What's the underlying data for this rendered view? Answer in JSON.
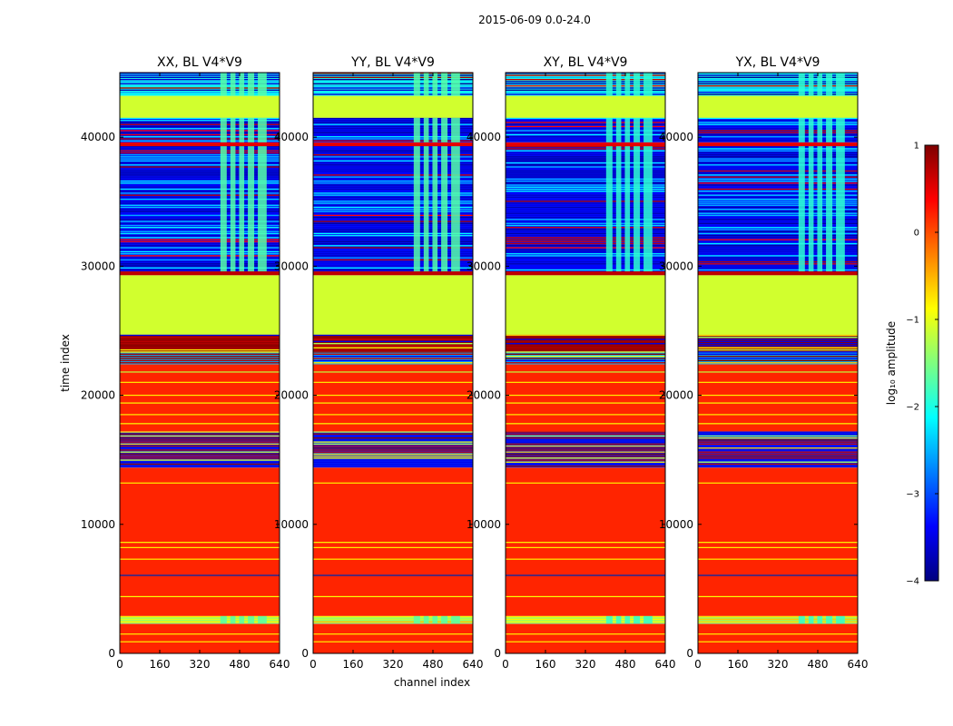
{
  "figure": {
    "suptitle": "2015-06-09 0.0-24.0",
    "xlabel": "channel index",
    "ylabel": "time index"
  },
  "colorbar": {
    "label": "log₁₀ amplitude",
    "range": [
      -4,
      1
    ],
    "ticks": [
      1,
      0,
      -1,
      -2,
      -3,
      -4
    ],
    "tick_labels": [
      "1",
      "0",
      "−1",
      "−2",
      "−3",
      "−4"
    ],
    "colors": [
      "#00007f",
      "#0000ff",
      "#007fff",
      "#00ffff",
      "#7fff7f",
      "#ffff00",
      "#ff7f00",
      "#ff0000",
      "#7f0000"
    ]
  },
  "chart_data": [
    {
      "type": "heatmap",
      "title": "XX, BL V4*V9",
      "xlim": [
        0,
        640
      ],
      "ylim": [
        0,
        45000
      ],
      "xticks": [
        0,
        160,
        320,
        480,
        640
      ],
      "yticks": [
        0,
        10000,
        20000,
        30000,
        40000
      ],
      "xtick_labels": [
        "0",
        "160",
        "320",
        "480",
        "640"
      ],
      "ytick_labels": [
        "0",
        "10000",
        "20000",
        "30000",
        "40000"
      ]
    },
    {
      "type": "heatmap",
      "title": "YY, BL V4*V9",
      "xlim": [
        0,
        640
      ],
      "ylim": [
        0,
        45000
      ],
      "xticks": [
        0,
        160,
        320,
        480,
        640
      ],
      "yticks": [
        0,
        10000,
        20000,
        30000,
        40000
      ],
      "xtick_labels": [
        "0",
        "160",
        "320",
        "480",
        "640"
      ],
      "ytick_labels": [
        "0",
        "10000",
        "20000",
        "30000",
        "40000"
      ]
    },
    {
      "type": "heatmap",
      "title": "XY, BL V4*V9",
      "xlim": [
        0,
        640
      ],
      "ylim": [
        0,
        45000
      ],
      "xticks": [
        0,
        160,
        320,
        480,
        640
      ],
      "yticks": [
        0,
        10000,
        20000,
        30000,
        40000
      ],
      "xtick_labels": [
        "0",
        "160",
        "320",
        "480",
        "640"
      ],
      "ytick_labels": [
        "0",
        "10000",
        "20000",
        "30000",
        "40000"
      ]
    },
    {
      "type": "heatmap",
      "title": "YX, BL V4*V9",
      "xlim": [
        0,
        640
      ],
      "ylim": [
        0,
        45000
      ],
      "xticks": [
        0,
        160,
        320,
        480,
        640
      ],
      "yticks": [
        0,
        10000,
        20000,
        30000,
        40000
      ],
      "xtick_labels": [
        "0",
        "160",
        "320",
        "480",
        "640"
      ],
      "ytick_labels": [
        "0",
        "10000",
        "20000",
        "30000",
        "40000"
      ]
    }
  ],
  "heatmap_bands": [
    {
      "t0": 0,
      "t1": 2300,
      "value": 0.2
    },
    {
      "t0": 2300,
      "t1": 2900,
      "value": -1.5,
      "kind": "rfi"
    },
    {
      "t0": 2900,
      "t1": 6000,
      "value": 0.2
    },
    {
      "t0": 6000,
      "t1": 6100,
      "value": -4
    },
    {
      "t0": 6100,
      "t1": 14400,
      "value": 0.2
    },
    {
      "t0": 14400,
      "t1": 17200,
      "value": -3.2,
      "kind": "mixed"
    },
    {
      "t0": 17200,
      "t1": 22400,
      "value": 0.2
    },
    {
      "t0": 22400,
      "t1": 23400,
      "value": -2.5,
      "kind": "mixed"
    },
    {
      "t0": 23400,
      "t1": 24700,
      "value": 0.9,
      "kind": "mixed"
    },
    {
      "t0": 24700,
      "t1": 29300,
      "value": -1.1
    },
    {
      "t0": 29300,
      "t1": 29600,
      "value": 0.7
    },
    {
      "t0": 29600,
      "t1": 39300,
      "value": -3.3,
      "kind": "data"
    },
    {
      "t0": 39300,
      "t1": 39600,
      "value": 0.5
    },
    {
      "t0": 39600,
      "t1": 41500,
      "value": -3.3,
      "kind": "data"
    },
    {
      "t0": 41500,
      "t1": 43200,
      "value": -1.1
    },
    {
      "t0": 43200,
      "t1": 45000,
      "value": -2.0,
      "kind": "data"
    }
  ],
  "heatmap_lines": [
    {
      "t": 900,
      "value": -0.8
    },
    {
      "t": 1500,
      "value": -0.8
    },
    {
      "t": 4400,
      "value": -0.9
    },
    {
      "t": 7300,
      "value": -0.8
    },
    {
      "t": 8200,
      "value": -0.8
    },
    {
      "t": 8600,
      "value": -0.9
    },
    {
      "t": 13200,
      "value": -0.8
    },
    {
      "t": 17800,
      "value": -0.9
    },
    {
      "t": 18500,
      "value": -0.8
    },
    {
      "t": 19400,
      "value": -0.9
    },
    {
      "t": 20000,
      "value": -0.8
    },
    {
      "t": 21000,
      "value": -0.8
    },
    {
      "t": 21800,
      "value": -1.2
    }
  ],
  "rfi_channels": [
    400,
    600
  ]
}
